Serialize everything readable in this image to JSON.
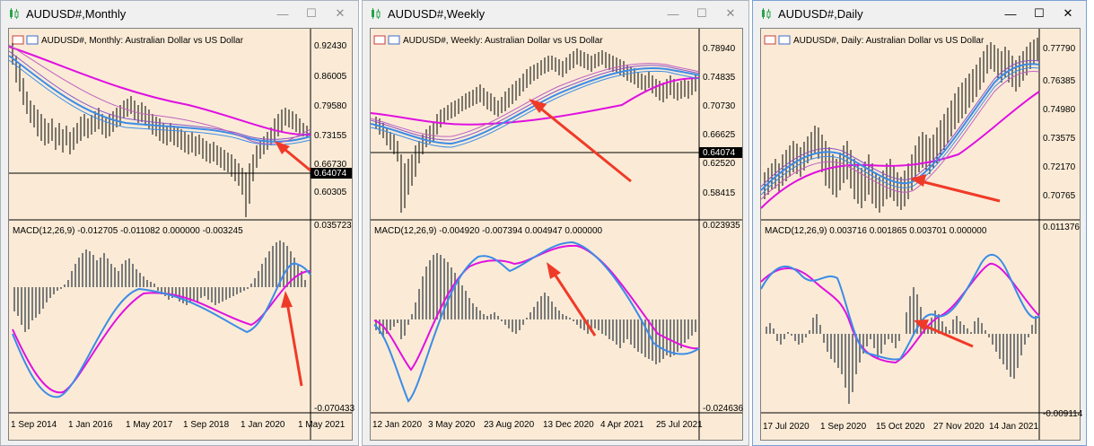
{
  "windows": [
    {
      "title": "AUDUSD#,Monthly",
      "header": "AUDUSD#, Monthly:  Australian Dollar vs US Dollar",
      "price_labels": [
        "0.92430",
        "0.86005",
        "0.79580",
        "0.73155",
        "0.66730",
        "0.60305"
      ],
      "current_price": "0.64074",
      "macd_header": "MACD(12,26,9) -0.012705 -0.011082 0.000000 -0.003245",
      "macd_labels": [
        "0.035723",
        "-0.070433"
      ],
      "date_labels": [
        "1 Sep 2014",
        "1 Jan 2016",
        "1 May 2017",
        "1 Sep 2018",
        "1 Jan 2020",
        "1 May 2021"
      ]
    },
    {
      "title": "AUDUSD#,Weekly",
      "header": "AUDUSD#, Weekly:  Australian Dollar vs US Dollar",
      "price_labels": [
        "0.78940",
        "0.74835",
        "0.70730",
        "0.66625",
        "0.62520",
        "0.58415"
      ],
      "current_price": "0.64074",
      "macd_header": "MACD(12,26,9) -0.004920 -0.007394 0.004947 0.000000",
      "macd_labels": [
        "0.023935",
        "-0.024636"
      ],
      "date_labels": [
        "12 Jan 2020",
        "3 May 2020",
        "23 Aug 2020",
        "13 Dec 2020",
        "4 Apr 2021",
        "25 Jul 2021"
      ]
    },
    {
      "title": "AUDUSD#,Daily",
      "header": "AUDUSD#, Daily:  Australian Dollar vs US Dollar",
      "price_labels": [
        "0.77790",
        "0.76385",
        "0.74980",
        "0.73575",
        "0.72170",
        "0.70765"
      ],
      "current_price": "",
      "macd_header": "MACD(12,26,9) 0.003716 0.001865 0.003701 0.000000",
      "macd_labels": [
        "0.011376",
        "-0.009114"
      ],
      "date_labels": [
        "17 Jul 2020",
        "1 Sep 2020",
        "15 Oct 2020",
        "27 Nov 2020",
        "14 Jan 2021"
      ]
    }
  ],
  "icons": [
    "chart-icon",
    "minimize-icon",
    "maximize-icon",
    "close-icon"
  ],
  "colors": {
    "window_bg": "#f0f0f0",
    "chart_bg": "#fbebd6",
    "ma_magenta": "#e010e0",
    "ma_blue": "#3c8ce6",
    "arrow_red": "#f03a28",
    "candle": "#000000",
    "histogram": "#7a7a7a"
  }
}
